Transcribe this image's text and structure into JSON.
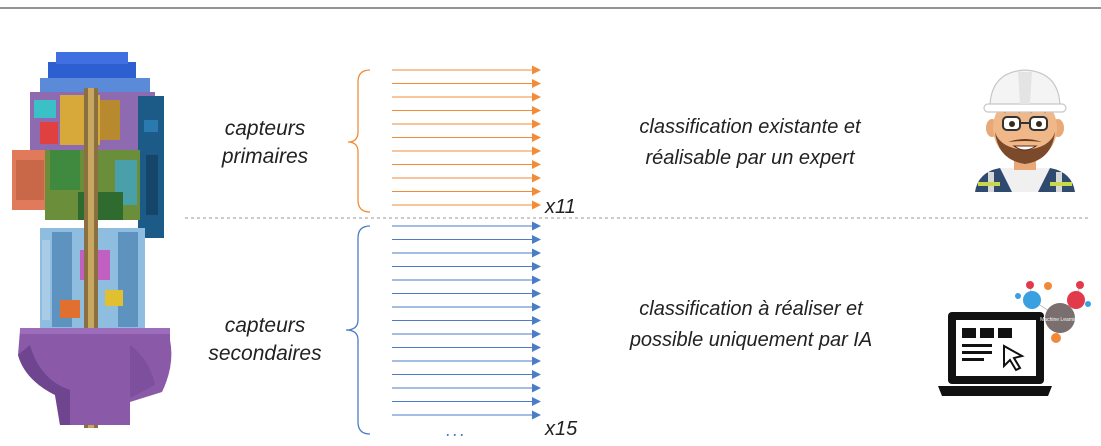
{
  "primary": {
    "label_line1": "capteurs",
    "label_line2": "primaires",
    "multiplier": "x11",
    "desc_line1": "classification existante et",
    "desc_line2": "réalisable par un expert",
    "arrow_color": "#F28C38",
    "arrow_count": 11
  },
  "secondary": {
    "label_line1": "capteurs",
    "label_line2": "secondaires",
    "multiplier": "x15",
    "ellipsis": "...",
    "desc_line1": "classification à réaliser et",
    "desc_line2": "possible uniquement par IA",
    "arrow_color": "#4A7CC7",
    "arrow_count": 15
  },
  "laptop_graphic": {
    "node_label": "Machine Learning"
  }
}
